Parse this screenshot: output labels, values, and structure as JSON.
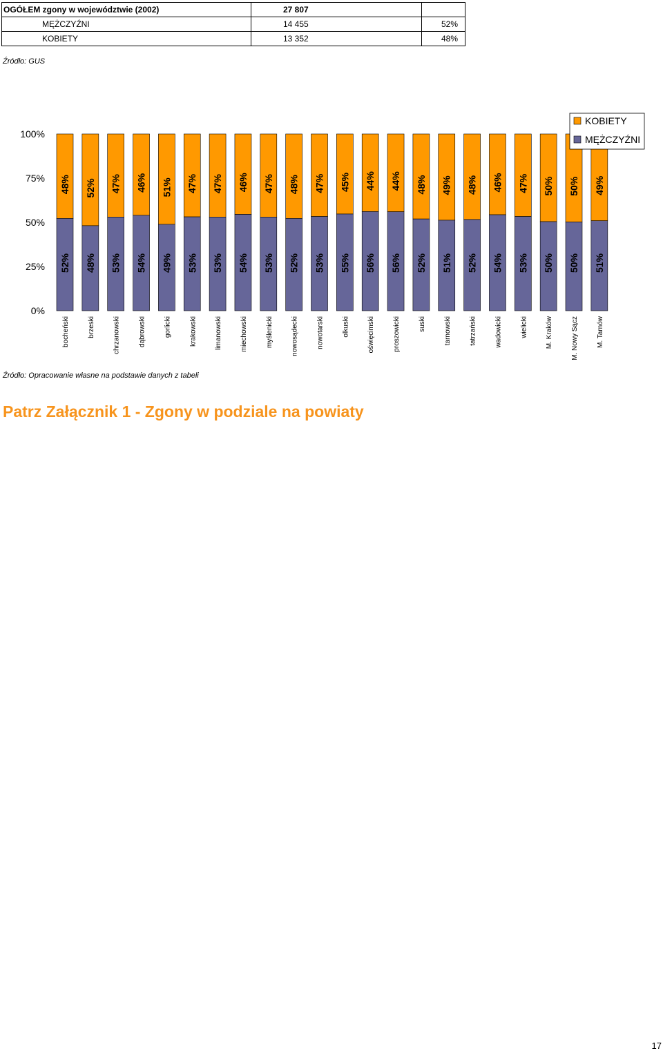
{
  "summary_table": {
    "rows": [
      {
        "label": "OGÓŁEM zgony w województwie (2002)",
        "value": "27 807",
        "percent": ""
      },
      {
        "label": "MĘŻCZYŹNI",
        "value": "14 455",
        "percent": "52%"
      },
      {
        "label": "KOBIETY",
        "value": "13 352",
        "percent": "48%"
      }
    ]
  },
  "source_gus": "Źródło: GUS",
  "source_chart": "Źródło: Opracowanie własne na podstawie danych z tabeli",
  "annex_link": "Patrz Załącznik 1 - Zgony w podziale na powiaty",
  "page_number": "17",
  "colors": {
    "men": "#666699",
    "women": "#ff9900"
  },
  "chart_data": {
    "type": "bar",
    "stacked": "percent",
    "categories": [
      "bocheński",
      "brzeski",
      "chrzanowski",
      "dąbrowski",
      "gorlicki",
      "krakowski",
      "limanowski",
      "miechowski",
      "myślenicki",
      "nowosądecki",
      "nowotarski",
      "olkuski",
      "oświęcimski",
      "proszowicki",
      "suski",
      "tarnowski",
      "tatrzański",
      "wadowicki",
      "wielicki",
      "M. Kraków",
      "M. Nowy Sącz",
      "M. Tarnów"
    ],
    "series": [
      {
        "name": "MĘŻCZYŹNI",
        "labels": [
          "52%",
          "48%",
          "53%",
          "54%",
          "49%",
          "53%",
          "53%",
          "54%",
          "53%",
          "52%",
          "53%",
          "55%",
          "56%",
          "56%",
          "52%",
          "51%",
          "52%",
          "54%",
          "53%",
          "50%",
          "50%",
          "51%"
        ],
        "values": [
          52.2,
          48.1,
          53.0,
          54.0,
          48.9,
          53.1,
          53.0,
          54.5,
          53.0,
          52.2,
          53.3,
          54.7,
          56.1,
          56.0,
          51.9,
          51.2,
          51.6,
          54.3,
          53.3,
          50.4,
          50.2,
          50.9
        ]
      },
      {
        "name": "KOBIETY",
        "labels": [
          "48%",
          "52%",
          "47%",
          "46%",
          "51%",
          "47%",
          "47%",
          "46%",
          "47%",
          "48%",
          "47%",
          "45%",
          "44%",
          "44%",
          "48%",
          "49%",
          "48%",
          "46%",
          "47%",
          "50%",
          "50%",
          "49%"
        ],
        "values": [
          47.8,
          51.9,
          47.0,
          46.0,
          51.1,
          46.9,
          47.0,
          45.5,
          47.0,
          47.8,
          46.7,
          45.3,
          43.9,
          44.0,
          48.1,
          48.8,
          48.4,
          45.7,
          46.7,
          49.6,
          49.8,
          49.1
        ]
      }
    ],
    "yticks": [
      "0%",
      "25%",
      "50%",
      "75%",
      "100%"
    ],
    "ylim": [
      0,
      100
    ],
    "legend_position": "top-right",
    "grid": false
  }
}
